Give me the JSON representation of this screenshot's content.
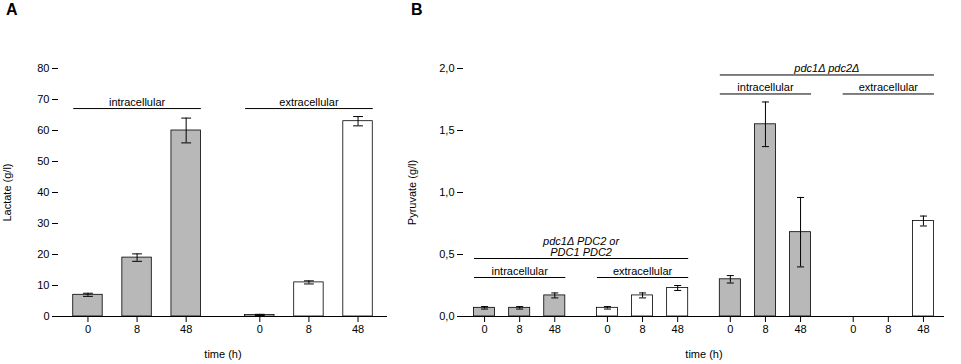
{
  "chart_data": [
    {
      "type": "bar",
      "title": "A",
      "xlabel": "time (h)",
      "ylabel": "Lactate (g/l)",
      "categories": [
        "0",
        "8",
        "48",
        "0",
        "8",
        "48"
      ],
      "series": [
        {
          "name": "intracellular",
          "color": "#b8b8b8",
          "values": [
            7.0,
            19.0,
            60.0,
            null,
            null,
            null
          ],
          "errors": [
            0.5,
            1.2,
            4.0,
            null,
            null,
            null
          ]
        },
        {
          "name": "extracellular",
          "color": "#ffffff",
          "values": [
            null,
            null,
            null,
            0.5,
            11.0,
            63.0
          ],
          "errors": [
            null,
            null,
            null,
            0.2,
            0.5,
            1.5
          ]
        }
      ],
      "ylim": [
        0,
        80
      ],
      "yticks": [
        0,
        10,
        20,
        30,
        40,
        50,
        60,
        70,
        80
      ]
    },
    {
      "type": "bar",
      "title": "B",
      "xlabel": "time (h)",
      "ylabel": "Pyruvate (g/l)",
      "categories": [
        "0",
        "8",
        "48",
        "0",
        "8",
        "48",
        "0",
        "8",
        "48",
        "0",
        "8",
        "48"
      ],
      "series": [
        {
          "name": "intracellular",
          "group": "pdc1Δ PDC2 or\nPDC1 PDC2",
          "color": "#b8b8b8",
          "values": [
            0.07,
            0.07,
            0.17,
            null,
            null,
            null,
            null,
            null,
            null,
            null,
            null,
            null
          ],
          "errors": [
            0.01,
            0.01,
            0.02,
            null,
            null,
            null,
            null,
            null,
            null,
            null,
            null,
            null
          ]
        },
        {
          "name": "extracellular",
          "group": "pdc1Δ PDC2 or\nPDC1 PDC2",
          "color": "#ffffff",
          "values": [
            null,
            null,
            null,
            0.07,
            0.17,
            0.23,
            null,
            null,
            null,
            null,
            null,
            null
          ],
          "errors": [
            null,
            null,
            null,
            0.01,
            0.02,
            0.02,
            null,
            null,
            null,
            null,
            null,
            null
          ]
        },
        {
          "name": "intracellular",
          "group": "pdc1Δ pdc2Δ",
          "color": "#b8b8b8",
          "values": [
            null,
            null,
            null,
            null,
            null,
            null,
            0.3,
            1.55,
            0.68,
            null,
            null,
            null
          ],
          "errors": [
            null,
            null,
            null,
            null,
            null,
            null,
            0.03,
            0.18,
            0.28,
            null,
            null,
            null
          ]
        },
        {
          "name": "extracellular",
          "group": "pdc1Δ pdc2Δ",
          "color": "#ffffff",
          "values": [
            null,
            null,
            null,
            null,
            null,
            null,
            null,
            null,
            null,
            0.0,
            0.0,
            0.77
          ],
          "errors": [
            null,
            null,
            null,
            null,
            null,
            null,
            null,
            null,
            null,
            0.0,
            0.0,
            0.04
          ]
        }
      ],
      "ylim": [
        0,
        2.0
      ],
      "yticks": [
        {
          "value": 0.0,
          "label": "0,0"
        },
        {
          "value": 0.5,
          "label": "0,5"
        },
        {
          "value": 1.0,
          "label": "1,0"
        },
        {
          "value": 1.5,
          "label": "1,5"
        },
        {
          "value": 2.0,
          "label": "2,0"
        }
      ]
    }
  ]
}
